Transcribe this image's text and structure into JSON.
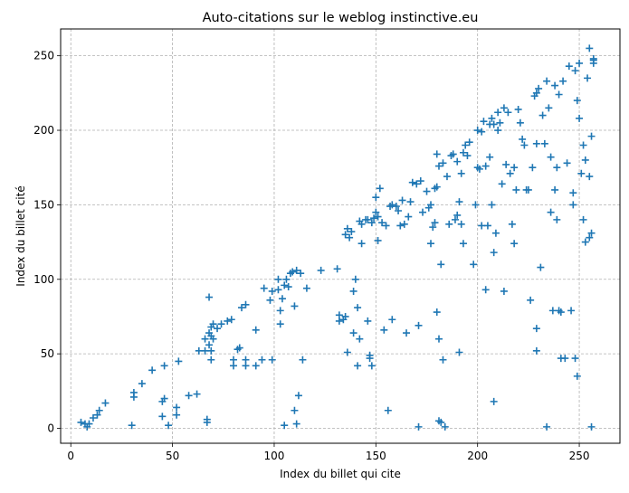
{
  "chart_data": {
    "type": "scatter",
    "title": "Auto-citations sur le weblog instinctive.eu",
    "xlabel": "Index du billet qui cite",
    "ylabel": "Index du billet cité",
    "xlim": [
      -5,
      270
    ],
    "ylim": [
      -10,
      268
    ],
    "xticks": [
      0,
      50,
      100,
      150,
      200,
      250
    ],
    "yticks": [
      0,
      50,
      100,
      150,
      200,
      250
    ],
    "grid": true,
    "marker": "plus",
    "color": "#1f77b4",
    "points": [
      [
        5,
        4
      ],
      [
        7,
        3
      ],
      [
        8,
        1
      ],
      [
        9,
        3
      ],
      [
        11,
        7
      ],
      [
        13,
        9
      ],
      [
        14,
        12
      ],
      [
        17,
        17
      ],
      [
        30,
        2
      ],
      [
        31,
        21
      ],
      [
        31,
        24
      ],
      [
        35,
        30
      ],
      [
        40,
        39
      ],
      [
        45,
        8
      ],
      [
        45,
        18
      ],
      [
        46,
        20
      ],
      [
        46,
        42
      ],
      [
        48,
        2
      ],
      [
        52,
        9
      ],
      [
        52,
        14
      ],
      [
        53,
        45
      ],
      [
        58,
        22
      ],
      [
        62,
        23
      ],
      [
        63,
        52
      ],
      [
        66,
        52
      ],
      [
        66,
        60
      ],
      [
        67,
        4
      ],
      [
        67,
        6
      ],
      [
        68,
        88
      ],
      [
        68,
        64
      ],
      [
        68,
        56
      ],
      [
        69,
        62
      ],
      [
        69,
        68
      ],
      [
        69,
        46
      ],
      [
        69,
        52
      ],
      [
        70,
        60
      ],
      [
        70,
        70
      ],
      [
        72,
        67
      ],
      [
        74,
        70
      ],
      [
        77,
        72
      ],
      [
        79,
        73
      ],
      [
        80,
        46
      ],
      [
        80,
        42
      ],
      [
        82,
        53
      ],
      [
        83,
        54
      ],
      [
        84,
        81
      ],
      [
        86,
        83
      ],
      [
        86,
        46
      ],
      [
        86,
        42
      ],
      [
        91,
        42
      ],
      [
        91,
        66
      ],
      [
        94,
        46
      ],
      [
        95,
        94
      ],
      [
        98,
        86
      ],
      [
        99,
        92
      ],
      [
        99,
        46
      ],
      [
        102,
        93
      ],
      [
        102,
        100
      ],
      [
        103,
        79
      ],
      [
        103,
        70
      ],
      [
        104,
        87
      ],
      [
        105,
        96
      ],
      [
        105,
        2
      ],
      [
        106,
        100
      ],
      [
        107,
        95
      ],
      [
        108,
        104
      ],
      [
        109,
        105
      ],
      [
        110,
        82
      ],
      [
        110,
        12
      ],
      [
        111,
        106
      ],
      [
        111,
        3
      ],
      [
        112,
        22
      ],
      [
        113,
        104
      ],
      [
        114,
        46
      ],
      [
        116,
        94
      ],
      [
        123,
        106
      ],
      [
        131,
        107
      ],
      [
        132,
        76
      ],
      [
        132,
        72
      ],
      [
        134,
        73
      ],
      [
        135,
        75
      ],
      [
        135,
        130
      ],
      [
        136,
        134
      ],
      [
        136,
        51
      ],
      [
        137,
        128
      ],
      [
        138,
        132
      ],
      [
        139,
        64
      ],
      [
        139,
        92
      ],
      [
        140,
        100
      ],
      [
        141,
        42
      ],
      [
        141,
        81
      ],
      [
        142,
        60
      ],
      [
        142,
        139
      ],
      [
        143,
        137
      ],
      [
        143,
        124
      ],
      [
        145,
        140
      ],
      [
        146,
        72
      ],
      [
        146,
        140
      ],
      [
        147,
        47
      ],
      [
        147,
        49
      ],
      [
        148,
        42
      ],
      [
        148,
        138
      ],
      [
        149,
        141
      ],
      [
        150,
        145
      ],
      [
        150,
        155
      ],
      [
        151,
        126
      ],
      [
        151,
        142
      ],
      [
        152,
        161
      ],
      [
        153,
        138
      ],
      [
        154,
        66
      ],
      [
        155,
        136
      ],
      [
        156,
        12
      ],
      [
        157,
        149
      ],
      [
        158,
        150
      ],
      [
        158,
        73
      ],
      [
        160,
        149
      ],
      [
        161,
        146
      ],
      [
        162,
        136
      ],
      [
        163,
        153
      ],
      [
        164,
        137
      ],
      [
        165,
        64
      ],
      [
        166,
        142
      ],
      [
        167,
        152
      ],
      [
        168,
        165
      ],
      [
        170,
        164
      ],
      [
        171,
        1
      ],
      [
        171,
        69
      ],
      [
        172,
        166
      ],
      [
        173,
        145
      ],
      [
        175,
        159
      ],
      [
        176,
        148
      ],
      [
        177,
        150
      ],
      [
        177,
        124
      ],
      [
        178,
        135
      ],
      [
        179,
        138
      ],
      [
        179,
        161
      ],
      [
        180,
        162
      ],
      [
        180,
        184
      ],
      [
        180,
        78
      ],
      [
        181,
        176
      ],
      [
        181,
        60
      ],
      [
        181,
        5
      ],
      [
        182,
        4
      ],
      [
        182,
        110
      ],
      [
        183,
        178
      ],
      [
        183,
        46
      ],
      [
        184,
        1
      ],
      [
        185,
        169
      ],
      [
        186,
        137
      ],
      [
        187,
        183
      ],
      [
        188,
        184
      ],
      [
        189,
        140
      ],
      [
        190,
        179
      ],
      [
        190,
        143
      ],
      [
        191,
        152
      ],
      [
        191,
        51
      ],
      [
        192,
        137
      ],
      [
        192,
        171
      ],
      [
        193,
        185
      ],
      [
        193,
        124
      ],
      [
        194,
        190
      ],
      [
        195,
        183
      ],
      [
        196,
        192
      ],
      [
        198,
        110
      ],
      [
        199,
        150
      ],
      [
        200,
        200
      ],
      [
        200,
        175
      ],
      [
        201,
        174
      ],
      [
        202,
        199
      ],
      [
        202,
        136
      ],
      [
        203,
        206
      ],
      [
        204,
        176
      ],
      [
        204,
        93
      ],
      [
        205,
        136
      ],
      [
        206,
        204
      ],
      [
        206,
        182
      ],
      [
        207,
        208
      ],
      [
        207,
        150
      ],
      [
        208,
        204
      ],
      [
        208,
        118
      ],
      [
        208,
        18
      ],
      [
        209,
        131
      ],
      [
        210,
        200
      ],
      [
        210,
        212
      ],
      [
        211,
        205
      ],
      [
        212,
        164
      ],
      [
        213,
        215
      ],
      [
        213,
        92
      ],
      [
        214,
        177
      ],
      [
        215,
        212
      ],
      [
        216,
        171
      ],
      [
        217,
        137
      ],
      [
        218,
        175
      ],
      [
        218,
        124
      ],
      [
        219,
        160
      ],
      [
        220,
        214
      ],
      [
        221,
        205
      ],
      [
        222,
        194
      ],
      [
        223,
        190
      ],
      [
        224,
        160
      ],
      [
        225,
        160
      ],
      [
        226,
        86
      ],
      [
        227,
        175
      ],
      [
        228,
        223
      ],
      [
        229,
        225
      ],
      [
        229,
        191
      ],
      [
        229,
        52
      ],
      [
        229,
        67
      ],
      [
        230,
        228
      ],
      [
        231,
        108
      ],
      [
        232,
        210
      ],
      [
        233,
        191
      ],
      [
        234,
        233
      ],
      [
        234,
        1
      ],
      [
        235,
        215
      ],
      [
        236,
        182
      ],
      [
        236,
        145
      ],
      [
        237,
        79
      ],
      [
        238,
        230
      ],
      [
        238,
        160
      ],
      [
        239,
        175
      ],
      [
        239,
        140
      ],
      [
        240,
        224
      ],
      [
        240,
        79
      ],
      [
        241,
        78
      ],
      [
        241,
        47
      ],
      [
        242,
        233
      ],
      [
        243,
        47
      ],
      [
        244,
        178
      ],
      [
        245,
        243
      ],
      [
        246,
        79
      ],
      [
        247,
        150
      ],
      [
        247,
        158
      ],
      [
        248,
        240
      ],
      [
        248,
        47
      ],
      [
        249,
        220
      ],
      [
        249,
        35
      ],
      [
        250,
        245
      ],
      [
        250,
        208
      ],
      [
        251,
        171
      ],
      [
        252,
        190
      ],
      [
        252,
        140
      ],
      [
        253,
        125
      ],
      [
        253,
        180
      ],
      [
        254,
        235
      ],
      [
        255,
        255
      ],
      [
        255,
        128
      ],
      [
        255,
        169
      ],
      [
        256,
        196
      ],
      [
        256,
        1
      ],
      [
        256,
        131
      ],
      [
        257,
        245
      ],
      [
        257,
        247
      ],
      [
        257,
        248
      ]
    ]
  }
}
